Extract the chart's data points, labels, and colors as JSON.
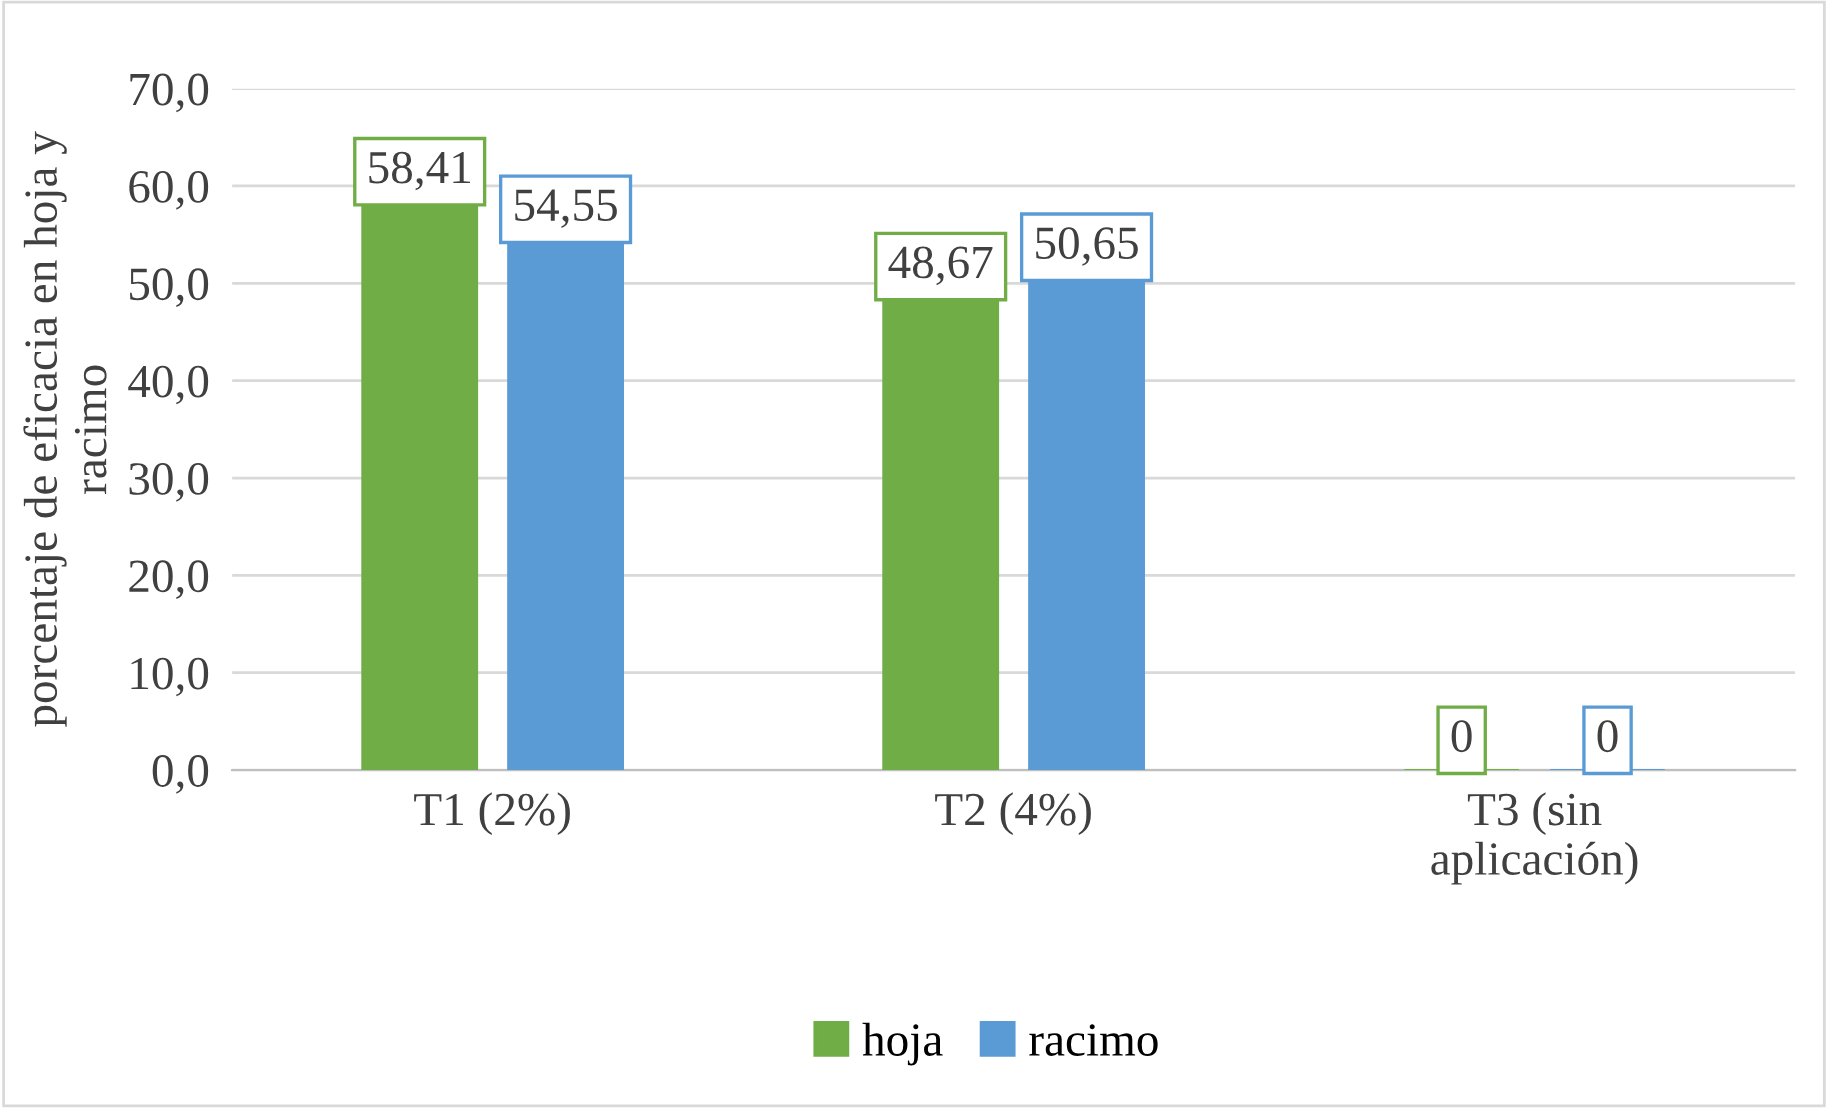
{
  "chart_data": {
    "type": "bar",
    "categories": [
      "T1 (2%)",
      "T2 (4%)",
      "T3 (sin\naplicación)"
    ],
    "ylabel": "porcentaje de eficacia en hoja y\nracimo",
    "series": [
      {
        "name": "hoja",
        "color": "#70ad47",
        "values": [
          58.41,
          48.67,
          0
        ],
        "value_labels": [
          "58,41",
          "48,67",
          "0"
        ]
      },
      {
        "name": "racimo",
        "color": "#5b9bd5",
        "values": [
          54.55,
          50.65,
          0
        ],
        "value_labels": [
          "54,55",
          "50,65",
          "0"
        ]
      }
    ],
    "ylim": [
      0,
      70
    ],
    "yticks": [
      {
        "value": 0,
        "label": "0,0"
      },
      {
        "value": 10,
        "label": "10,0"
      },
      {
        "value": 20,
        "label": "20,0"
      },
      {
        "value": 30,
        "label": "30,0"
      },
      {
        "value": 40,
        "label": "40,0"
      },
      {
        "value": 50,
        "label": "50,0"
      },
      {
        "value": 60,
        "label": "60,0"
      },
      {
        "value": 70,
        "label": "70,0"
      }
    ],
    "grid": "y",
    "legend": "bottom"
  }
}
